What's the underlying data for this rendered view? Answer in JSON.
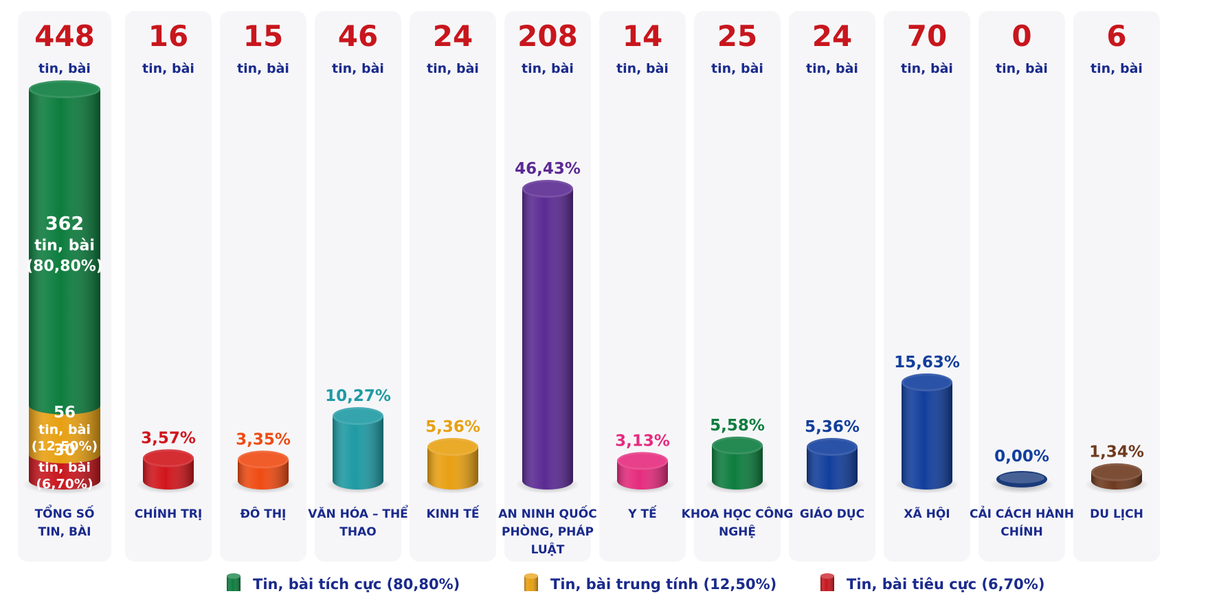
{
  "chart_data": {
    "type": "bar",
    "unit_label": "tin, bài",
    "total": {
      "category": "TỔNG SỐ TIN, BÀI",
      "count": 448,
      "segments": [
        {
          "name": "Tin, bài tích cực",
          "count": 362,
          "unit": "tin, bài",
          "percent": "(80,80%)",
          "color": "#0d7d3e"
        },
        {
          "name": "Tin, bài trung tính",
          "count": 56,
          "unit": "tin, bài",
          "percent": "(12,50%)",
          "color": "#e8a012"
        },
        {
          "name": "Tin, bài tiêu cực",
          "count": 30,
          "unit": "tin, bài",
          "percent": "(6,70%)",
          "color": "#c8161d"
        }
      ]
    },
    "categories": [
      {
        "label": "CHÍNH TRỊ",
        "count": 16,
        "percent": 3.57,
        "percent_label": "3,57%",
        "color": "#d0161c"
      },
      {
        "label": "ĐÔ THỊ",
        "count": 15,
        "percent": 3.35,
        "percent_label": "3,35%",
        "color": "#ef4b12"
      },
      {
        "label": "VĂN HÓA – THỂ THAO",
        "count": 46,
        "percent": 10.27,
        "percent_label": "10,27%",
        "color": "#1f9aa3"
      },
      {
        "label": "KINH TẾ",
        "count": 24,
        "percent": 5.36,
        "percent_label": "5,36%",
        "color": "#e8a012"
      },
      {
        "label": "AN NINH QUỐC PHÒNG, PHÁP LUẬT",
        "count": 208,
        "percent": 46.43,
        "percent_label": "46,43%",
        "color": "#5b2a93"
      },
      {
        "label": "Y TẾ",
        "count": 14,
        "percent": 3.13,
        "percent_label": "3,13%",
        "color": "#e52b7d"
      },
      {
        "label": "KHOA HỌC CÔNG NGHỆ",
        "count": 25,
        "percent": 5.58,
        "percent_label": "5,58%",
        "color": "#0d7d3e"
      },
      {
        "label": "GIÁO DỤC",
        "count": 24,
        "percent": 5.36,
        "percent_label": "5,36%",
        "color": "#123e9c"
      },
      {
        "label": "XÃ HỘI",
        "count": 70,
        "percent": 15.63,
        "percent_label": "15,63%",
        "color": "#123e9c"
      },
      {
        "label": "CẢI CÁCH HÀNH CHÍNH",
        "count": 0,
        "percent": 0.0,
        "percent_label": "0,00%",
        "color": "#1a3a7a"
      },
      {
        "label": "DU LỊCH",
        "count": 6,
        "percent": 1.34,
        "percent_label": "1,34%",
        "color": "#6e3a1e"
      }
    ],
    "legend": [
      {
        "label": "Tin, bài tích cực (80,80%)",
        "color": "#0d7d3e"
      },
      {
        "label": "Tin, bài trung tính (12,50%)",
        "color": "#e8a012"
      },
      {
        "label": "Tin, bài tiêu cực (6,70%)",
        "color": "#c8161d"
      }
    ],
    "legend_position": "bottom"
  }
}
